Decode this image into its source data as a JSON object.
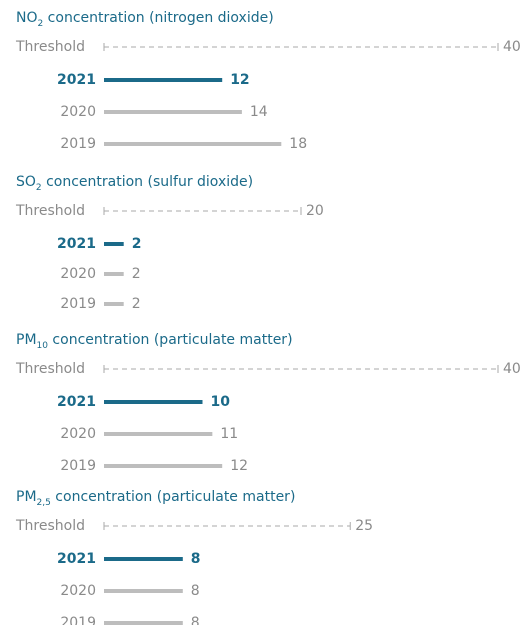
{
  "chart_data": [
    {
      "type": "bar",
      "title": {
        "main": "NO",
        "sub": "2",
        "rest": " concentration (nitrogen dioxide)"
      },
      "threshold": {
        "label": "Threshold",
        "value": 40
      },
      "categories": [
        "2021",
        "2020",
        "2019"
      ],
      "values": [
        12,
        14,
        18
      ],
      "colors": [
        "#1b6a89",
        "#bdbdbd",
        "#bdbdbd"
      ],
      "bold": [
        true,
        false,
        false
      ]
    },
    {
      "type": "bar",
      "title": {
        "main": "SO",
        "sub": "2",
        "rest": " concentration (sulfur dioxide)"
      },
      "threshold": {
        "label": "Threshold",
        "value": 20
      },
      "categories": [
        "2021",
        "2020",
        "2019"
      ],
      "values": [
        2,
        2,
        2
      ],
      "colors": [
        "#1b6a89",
        "#bdbdbd",
        "#bdbdbd"
      ],
      "bold": [
        true,
        false,
        false
      ]
    },
    {
      "type": "bar",
      "title": {
        "main": "PM",
        "sub": "10",
        "rest": " concentration (particulate matter)"
      },
      "threshold": {
        "label": "Threshold",
        "value": 40
      },
      "categories": [
        "2021",
        "2020",
        "2019"
      ],
      "values": [
        10,
        11,
        12
      ],
      "colors": [
        "#1b6a89",
        "#bdbdbd",
        "#bdbdbd"
      ],
      "bold": [
        true,
        false,
        false
      ]
    },
    {
      "type": "bar",
      "title": {
        "main": "PM",
        "sub": "2,5",
        "rest": " concentration (particulate matter)"
      },
      "threshold": {
        "label": "Threshold",
        "value": 25
      },
      "categories": [
        "2021",
        "2020",
        "2019"
      ],
      "values": [
        8,
        8,
        8
      ],
      "colors": [
        "#1b6a89",
        "#bdbdbd",
        "#bdbdbd"
      ],
      "bold": [
        true,
        false,
        false
      ]
    }
  ]
}
